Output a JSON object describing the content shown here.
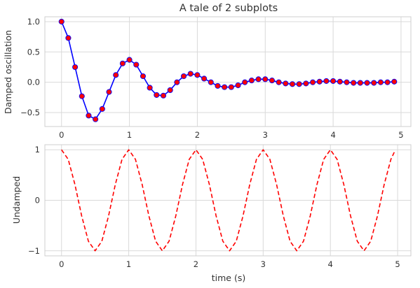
{
  "chart_data": [
    {
      "type": "line",
      "title": "A tale of 2 subplots",
      "xlabel": "",
      "ylabel": "Damped oscillation",
      "xlim": [
        -0.245,
        5.145
      ],
      "ylim": [
        -0.73,
        1.08
      ],
      "xticks": [
        0,
        1,
        2,
        3,
        4,
        5
      ],
      "xtick_labels": [
        "0",
        "1",
        "2",
        "3",
        "4",
        "5"
      ],
      "yticks": [
        -0.5,
        0.0,
        0.5,
        1.0
      ],
      "ytick_labels": [
        "−0.5",
        "0.0",
        "0.5",
        "1.0"
      ],
      "grid": true,
      "series": [
        {
          "line_color": "#0000ff",
          "marker_color": "#ff0000",
          "marker": "circle",
          "x": [
            0.0,
            0.1,
            0.2,
            0.3,
            0.4,
            0.5,
            0.6,
            0.7,
            0.8,
            0.9,
            1.0,
            1.1,
            1.2,
            1.3,
            1.4,
            1.5,
            1.6,
            1.7,
            1.8,
            1.9,
            2.0,
            2.1,
            2.2,
            2.3,
            2.4,
            2.5,
            2.6,
            2.7,
            2.8,
            2.9,
            3.0,
            3.1,
            3.2,
            3.3,
            3.4,
            3.5,
            3.6,
            3.7,
            3.8,
            3.9,
            4.0,
            4.1,
            4.2,
            4.3,
            4.4,
            4.5,
            4.6,
            4.7,
            4.8,
            4.9
          ],
          "y": [
            1.0,
            0.73,
            0.25,
            -0.23,
            -0.55,
            -0.61,
            -0.44,
            -0.16,
            0.12,
            0.31,
            0.37,
            0.29,
            0.1,
            -0.09,
            -0.21,
            -0.22,
            -0.13,
            0.0,
            0.1,
            0.14,
            0.12,
            0.06,
            0.0,
            -0.06,
            -0.08,
            -0.08,
            -0.05,
            0.0,
            0.03,
            0.05,
            0.05,
            0.03,
            0.0,
            -0.02,
            -0.03,
            -0.03,
            -0.02,
            0.0,
            0.01,
            0.02,
            0.02,
            0.01,
            0.0,
            -0.01,
            -0.01,
            -0.01,
            -0.01,
            0.0,
            0.0,
            0.01
          ]
        }
      ]
    },
    {
      "type": "line",
      "title": "",
      "xlabel": "time (s)",
      "ylabel": "Undamped",
      "xlim": [
        -0.2475,
        5.1975
      ],
      "ylim": [
        -1.1,
        1.1
      ],
      "xticks": [
        0,
        1,
        2,
        3,
        4,
        5
      ],
      "xtick_labels": [
        "0",
        "1",
        "2",
        "3",
        "4",
        "5"
      ],
      "yticks": [
        -1,
        0,
        1
      ],
      "ytick_labels": [
        "−1",
        "0",
        "1"
      ],
      "grid": true,
      "series": [
        {
          "line_color": "#ff0000",
          "line_style": "dashed",
          "x": [
            0.0,
            0.1,
            0.2,
            0.3,
            0.4,
            0.5,
            0.6,
            0.7,
            0.8,
            0.9,
            1.0,
            1.1,
            1.2,
            1.3,
            1.4,
            1.5,
            1.6,
            1.7,
            1.8,
            1.9,
            2.0,
            2.1,
            2.2,
            2.3,
            2.4,
            2.5,
            2.6,
            2.7,
            2.8,
            2.9,
            3.0,
            3.1,
            3.2,
            3.3,
            3.4,
            3.5,
            3.6,
            3.7,
            3.8,
            3.9,
            4.0,
            4.1,
            4.2,
            4.3,
            4.4,
            4.5,
            4.6,
            4.7,
            4.8,
            4.9,
            4.95
          ],
          "y": [
            1.0,
            0.81,
            0.31,
            -0.31,
            -0.81,
            -1.0,
            -0.81,
            -0.31,
            0.31,
            0.81,
            1.0,
            0.81,
            0.31,
            -0.31,
            -0.81,
            -1.0,
            -0.81,
            -0.31,
            0.31,
            0.81,
            1.0,
            0.81,
            0.31,
            -0.31,
            -0.81,
            -1.0,
            -0.81,
            -0.31,
            0.31,
            0.81,
            1.0,
            0.81,
            0.31,
            -0.31,
            -0.81,
            -1.0,
            -0.81,
            -0.31,
            0.31,
            0.81,
            1.0,
            0.81,
            0.31,
            -0.31,
            -0.81,
            -1.0,
            -0.81,
            -0.31,
            0.31,
            0.81,
            0.95
          ]
        }
      ]
    }
  ]
}
